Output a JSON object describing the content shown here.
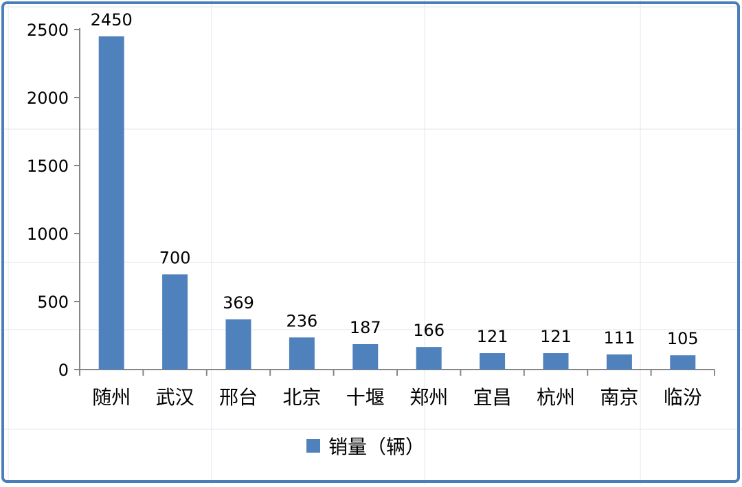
{
  "chart_data": {
    "type": "bar",
    "categories": [
      "随州",
      "武汉",
      "邢台",
      "北京",
      "十堰",
      "郑州",
      "宜昌",
      "杭州",
      "南京",
      "临汾"
    ],
    "series": [
      {
        "name": "销量（辆）",
        "values": [
          2450,
          700,
          369,
          236,
          187,
          166,
          121,
          121,
          111,
          105
        ]
      }
    ],
    "ylim": [
      0,
      2500
    ],
    "yticks": [
      "0",
      "500",
      "1000",
      "1500",
      "2000",
      "2500"
    ],
    "data_labels": true,
    "grid": false,
    "legend_placement": "bottom",
    "colors": {
      "bar": "#4f81bd",
      "frame_border": "#4a7ebb",
      "axis": "#868686",
      "background_grid": "#dfe6ee"
    }
  }
}
